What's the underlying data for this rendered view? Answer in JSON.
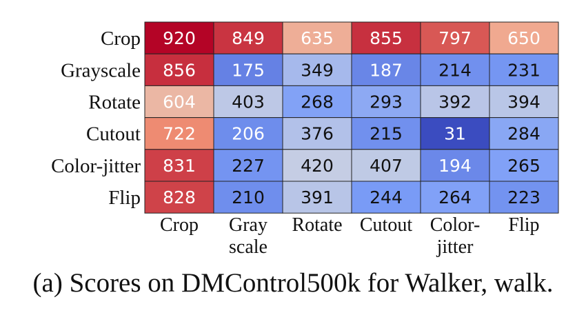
{
  "chart_data": {
    "type": "heatmap",
    "rows": [
      "Crop",
      "Grayscale",
      "Rotate",
      "Cutout",
      "Color-jitter",
      "Flip"
    ],
    "columns": [
      [
        "Crop"
      ],
      [
        "Gray",
        "scale"
      ],
      [
        "Rotate"
      ],
      [
        "Cutout"
      ],
      [
        "Color-",
        "jitter"
      ],
      [
        "Flip"
      ]
    ],
    "values": [
      [
        920,
        849,
        635,
        855,
        797,
        650
      ],
      [
        856,
        175,
        349,
        187,
        214,
        231
      ],
      [
        604,
        403,
        268,
        293,
        392,
        394
      ],
      [
        722,
        206,
        376,
        215,
        31,
        284
      ],
      [
        831,
        227,
        420,
        407,
        194,
        265
      ],
      [
        828,
        210,
        391,
        244,
        264,
        223
      ]
    ],
    "colormap": "coolwarm",
    "value_range": [
      31,
      920
    ]
  },
  "caption": "(a) Scores on DMControl500k for Walker, walk."
}
